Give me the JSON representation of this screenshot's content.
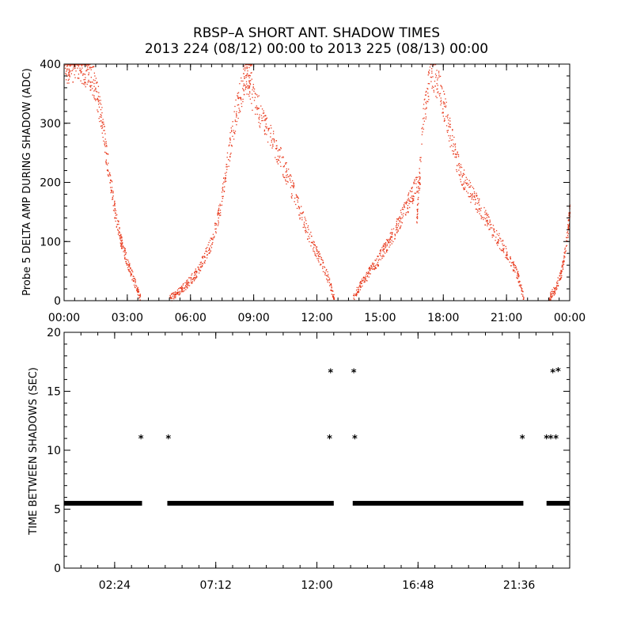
{
  "figure": {
    "title": "RBSP–A SHORT ANT. SHADOW TIMES",
    "subtitle": "2013 224 (08/12) 00:00 to 2013 225 (08/13) 00:00"
  },
  "chart_data": [
    {
      "type": "scatter",
      "ylabel": "Probe 5 DELTA AMP DURING SHADOW (ADC)",
      "xlabel": "",
      "x_unit": "hours since 2013-08-12 00:00",
      "xlim": [
        0,
        24
      ],
      "ylim": [
        0,
        400
      ],
      "xticks": [
        0,
        3,
        6,
        9,
        12,
        15,
        18,
        21,
        24
      ],
      "xtick_labels": [
        "00:00",
        "03:00",
        "06:00",
        "09:00",
        "12:00",
        "15:00",
        "18:00",
        "21:00",
        "00:00"
      ],
      "yticks": [
        0,
        100,
        200,
        300,
        400
      ],
      "ytick_labels": [
        "0",
        "100",
        "200",
        "300",
        "400"
      ],
      "color": "#e8391c",
      "series": [
        {
          "x": [
            0.0,
            0.3,
            0.6,
            0.9,
            1.2,
            1.5,
            1.8,
            2.1,
            2.4,
            2.7,
            3.0,
            3.3,
            3.6
          ],
          "y": [
            395,
            400,
            400,
            395,
            385,
            360,
            300,
            220,
            150,
            100,
            65,
            35,
            5
          ]
        },
        {
          "x": [
            5.0,
            5.4,
            5.8,
            6.2,
            6.6,
            7.0,
            7.4,
            7.8,
            8.2,
            8.6,
            8.9
          ],
          "y": [
            5,
            15,
            28,
            45,
            70,
            100,
            160,
            250,
            330,
            380,
            400
          ]
        },
        {
          "x": [
            8.5,
            9.0,
            9.5,
            10.0,
            10.5,
            11.0,
            11.5,
            12.0,
            12.5,
            12.8
          ],
          "y": [
            380,
            340,
            300,
            260,
            220,
            170,
            120,
            80,
            40,
            5
          ]
        },
        {
          "x": [
            13.7,
            14.1,
            14.5,
            14.9,
            15.3,
            15.7,
            16.1,
            16.5,
            16.9
          ],
          "y": [
            5,
            30,
            50,
            70,
            95,
            120,
            150,
            180,
            210
          ]
        },
        {
          "x": [
            16.7,
            17.0,
            17.4,
            17.8,
            18.2,
            18.6,
            19.0
          ],
          "y": [
            120,
            300,
            390,
            360,
            300,
            240,
            200
          ]
        },
        {
          "x": [
            19.0,
            19.5,
            20.0,
            20.5,
            21.0,
            21.5,
            21.8
          ],
          "y": [
            200,
            170,
            140,
            110,
            80,
            45,
            5
          ]
        },
        {
          "x": [
            23.0,
            23.3,
            23.6,
            23.9,
            24.0
          ],
          "y": [
            5,
            20,
            50,
            120,
            160
          ]
        }
      ]
    },
    {
      "type": "scatter",
      "ylabel": "TIME BETWEEN SHADOWS (SEC)",
      "xlabel": "",
      "x_unit": "hours since 2013-08-12 00:00",
      "xlim": [
        0,
        24
      ],
      "ylim": [
        0,
        20
      ],
      "xticks": [
        2.4,
        7.2,
        12.0,
        16.8,
        21.6
      ],
      "xtick_labels": [
        "02:24",
        "07:12",
        "12:00",
        "16:48",
        "21:36"
      ],
      "yticks": [
        0,
        5,
        10,
        15,
        20
      ],
      "ytick_labels": [
        "0",
        "5",
        "10",
        "15",
        "20"
      ],
      "marker": "*",
      "color": "#000000",
      "baseline": {
        "y": 5.5,
        "ranges": [
          [
            0.0,
            3.7
          ],
          [
            4.9,
            12.8
          ],
          [
            13.7,
            21.8
          ],
          [
            22.9,
            24.0
          ]
        ]
      },
      "outliers": [
        {
          "x": 3.65,
          "y": 11.0
        },
        {
          "x": 4.95,
          "y": 11.0
        },
        {
          "x": 12.6,
          "y": 11.0
        },
        {
          "x": 12.65,
          "y": 16.6
        },
        {
          "x": 13.75,
          "y": 16.6
        },
        {
          "x": 13.8,
          "y": 11.0
        },
        {
          "x": 21.75,
          "y": 11.0
        },
        {
          "x": 22.9,
          "y": 11.0
        },
        {
          "x": 23.1,
          "y": 11.0
        },
        {
          "x": 23.2,
          "y": 16.6
        },
        {
          "x": 23.45,
          "y": 16.7
        },
        {
          "x": 23.35,
          "y": 11.0
        }
      ]
    }
  ]
}
